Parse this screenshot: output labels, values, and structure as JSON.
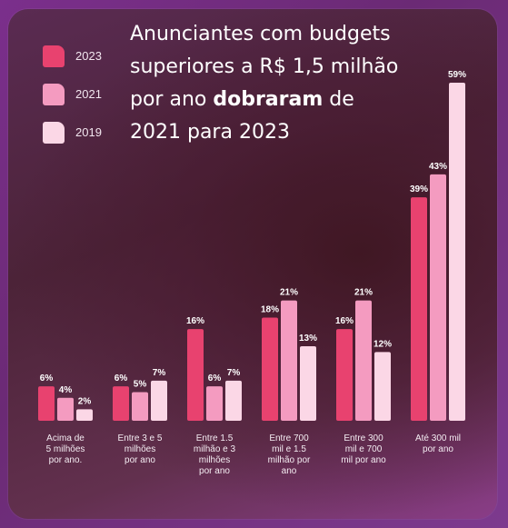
{
  "title": {
    "line1": "Anunciantes com budgets",
    "line2": "superiores a R$ 1,5 milhão",
    "line3_pre": "por ano ",
    "line3_bold": "dobraram",
    "line3_post": " de",
    "line4": "2021 para 2023"
  },
  "legend": [
    {
      "label": "2023",
      "color": "#e8426f"
    },
    {
      "label": "2021",
      "color": "#f49bc0"
    },
    {
      "label": "2019",
      "color": "#fbd7e6"
    }
  ],
  "chart_data": {
    "type": "bar",
    "title": "Anunciantes com budgets superiores a R$ 1,5 milhão por ano dobraram de 2021 para 2023",
    "categories": [
      [
        "Acima de",
        "5 milhões",
        "por ano."
      ],
      [
        "Entre 3 e 5",
        "milhões",
        "por ano"
      ],
      [
        "Entre 1.5",
        "milhão e 3",
        "milhões",
        "por ano"
      ],
      [
        "Entre 700",
        "mil e 1.5",
        "milhão por",
        "ano"
      ],
      [
        "Entre 300",
        "mil e 700",
        "mil por ano"
      ],
      [
        "Até 300 mil",
        "por ano"
      ]
    ],
    "series": [
      {
        "name": "2023",
        "color": "#e8426f",
        "values": [
          6,
          6,
          16,
          18,
          16,
          39
        ]
      },
      {
        "name": "2021",
        "color": "#f49bc0",
        "values": [
          4,
          5,
          6,
          21,
          21,
          43
        ]
      },
      {
        "name": "2019",
        "color": "#fbd7e6",
        "values": [
          2,
          7,
          7,
          13,
          12,
          59
        ]
      }
    ],
    "value_suffix": "%",
    "ylim": [
      0,
      59
    ],
    "grid": false,
    "legend_position": "top-left"
  }
}
